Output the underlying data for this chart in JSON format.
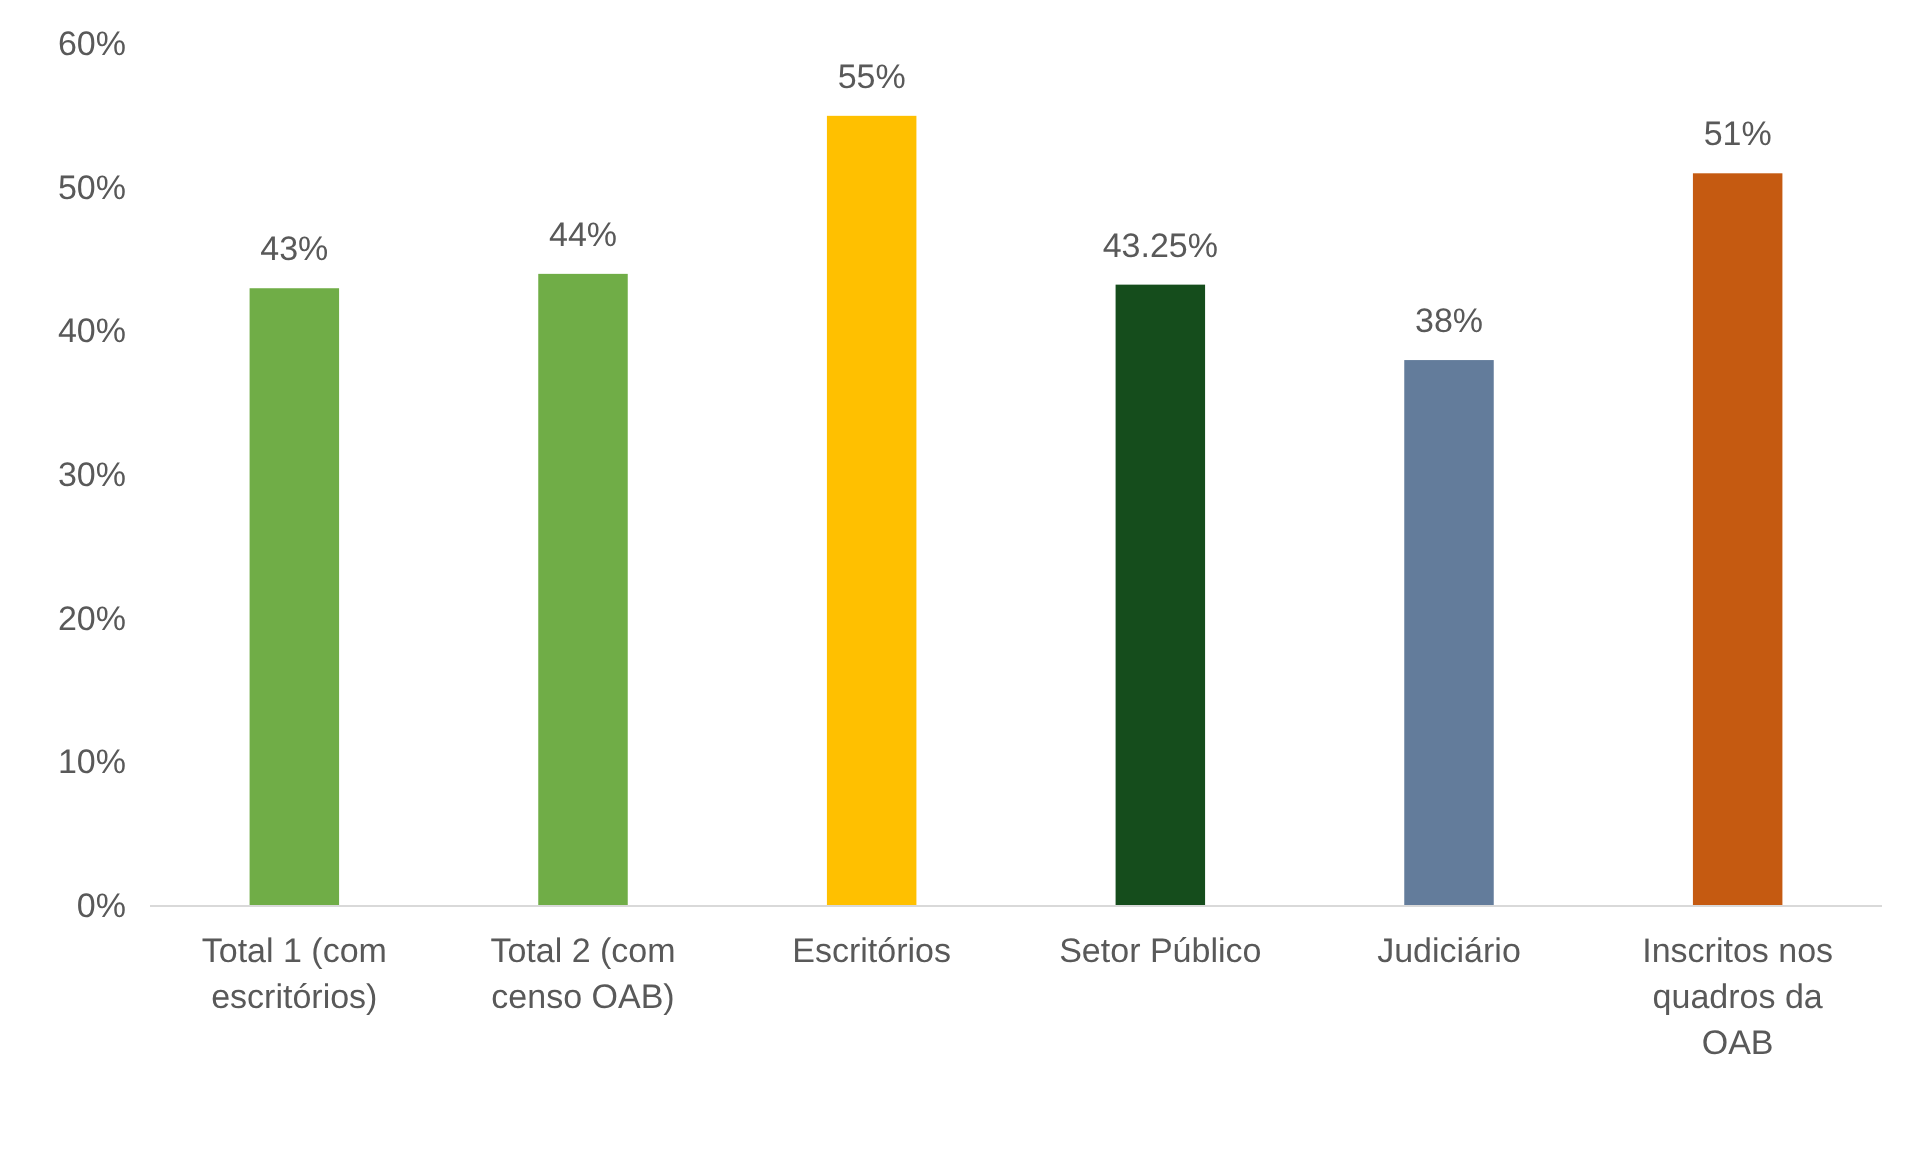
{
  "chart_data": {
    "type": "bar",
    "categories": [
      "Total 1 (com escritórios)",
      "Total 2 (com censo OAB)",
      "Escritórios",
      "Setor Público",
      "Judiciário",
      "Inscritos nos quadros da OAB"
    ],
    "values": [
      43,
      44,
      55,
      43.25,
      38,
      51
    ],
    "colors": [
      "#70ad47",
      "#70ad47",
      "#ffc000",
      "#154d1c",
      "#637c9b",
      "#c55a11"
    ],
    "value_labels": [
      "43%",
      "44%",
      "55%",
      "43.25%",
      "38%",
      "51%"
    ],
    "ylim": [
      0,
      60
    ],
    "yticks": [
      {
        "value": 0,
        "label": "0%"
      },
      {
        "value": 10,
        "label": "10%"
      },
      {
        "value": 20,
        "label": "20%"
      },
      {
        "value": 30,
        "label": "30%"
      },
      {
        "value": 40,
        "label": "40%"
      },
      {
        "value": 50,
        "label": "50%"
      },
      {
        "value": 60,
        "label": "60%"
      }
    ],
    "grid": false
  }
}
